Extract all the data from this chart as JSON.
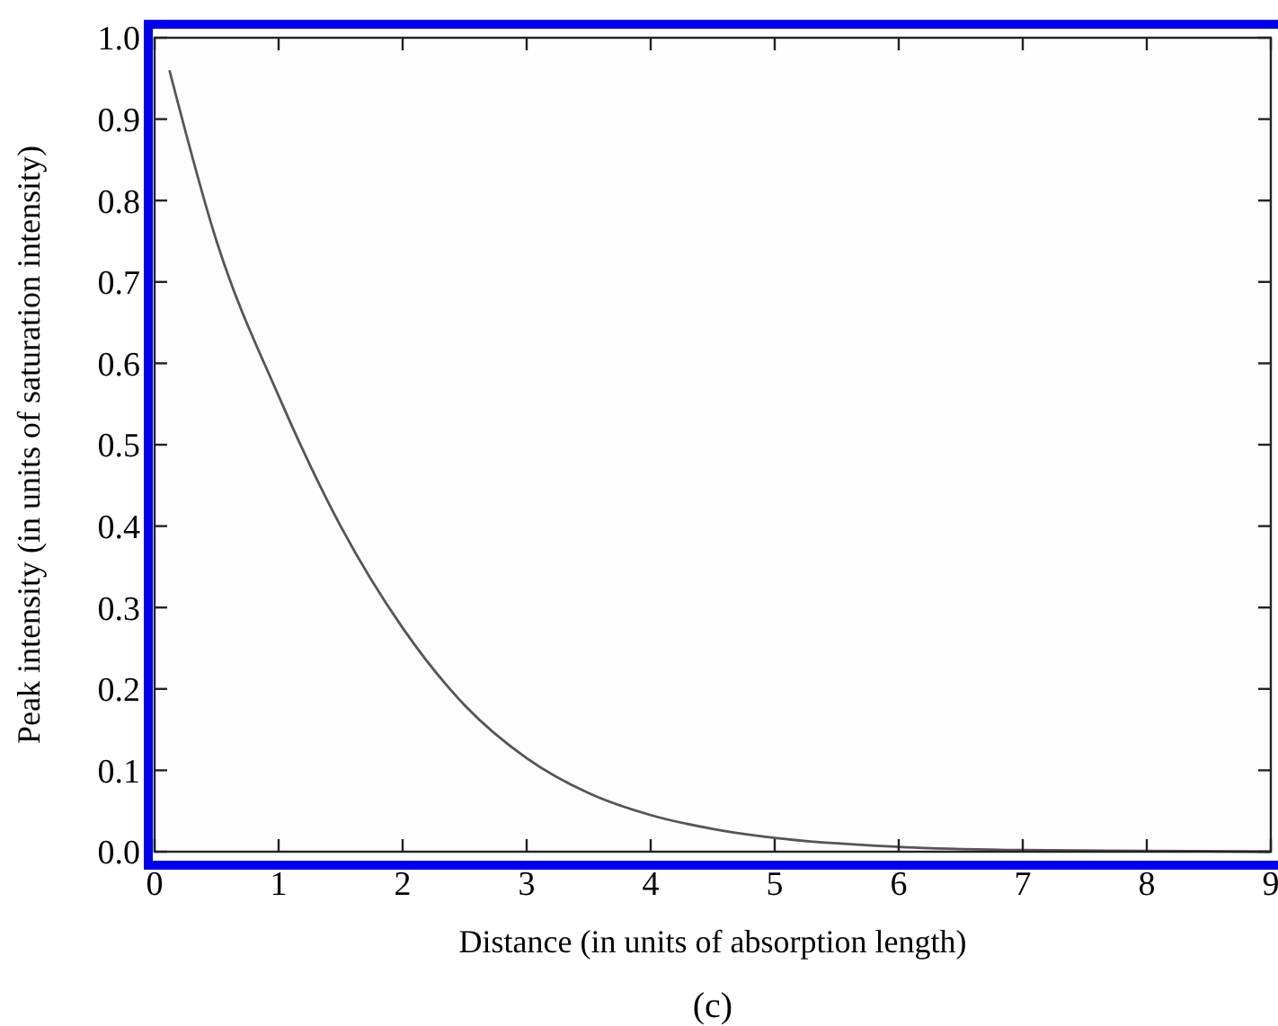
{
  "chart_data": {
    "type": "line",
    "xlabel": "Distance (in units of absorption length)",
    "ylabel": "Peak intensity (in units of saturation intensity)",
    "annotations": [
      "(c)"
    ],
    "x": [
      0.12,
      0.5,
      1,
      1.5,
      2,
      2.5,
      3,
      3.5,
      4,
      4.5,
      5,
      6,
      7,
      8,
      9
    ],
    "series": [
      {
        "color": "#555555",
        "values": [
          0.96,
          0.75,
          0.56,
          0.4,
          0.275,
          0.18,
          0.115,
          0.072,
          0.045,
          0.028,
          0.017,
          0.006,
          0.002,
          0.001,
          0.0
        ]
      }
    ],
    "xlim": [
      0,
      9
    ],
    "xticks": [
      0,
      1,
      2,
      3,
      4,
      5,
      6,
      7,
      8,
      9
    ],
    "ylim": [
      0,
      1
    ],
    "yticks": [
      {
        "value": 0,
        "label": "0.0"
      },
      {
        "value": 0.1,
        "label": "0.1"
      },
      {
        "value": 0.2,
        "label": "0.2"
      },
      {
        "value": 0.3,
        "label": "0.3"
      },
      {
        "value": 0.4,
        "label": "0.4"
      },
      {
        "value": 0.5,
        "label": "0.5"
      },
      {
        "value": 0.6,
        "label": "0.6"
      },
      {
        "value": 0.7,
        "label": "0.7"
      },
      {
        "value": 0.8,
        "label": "0.8"
      },
      {
        "value": 0.9,
        "label": "0.9"
      },
      {
        "value": 1,
        "label": "1.0"
      }
    ],
    "grid": false,
    "marker": "none",
    "line_style": "solid"
  }
}
